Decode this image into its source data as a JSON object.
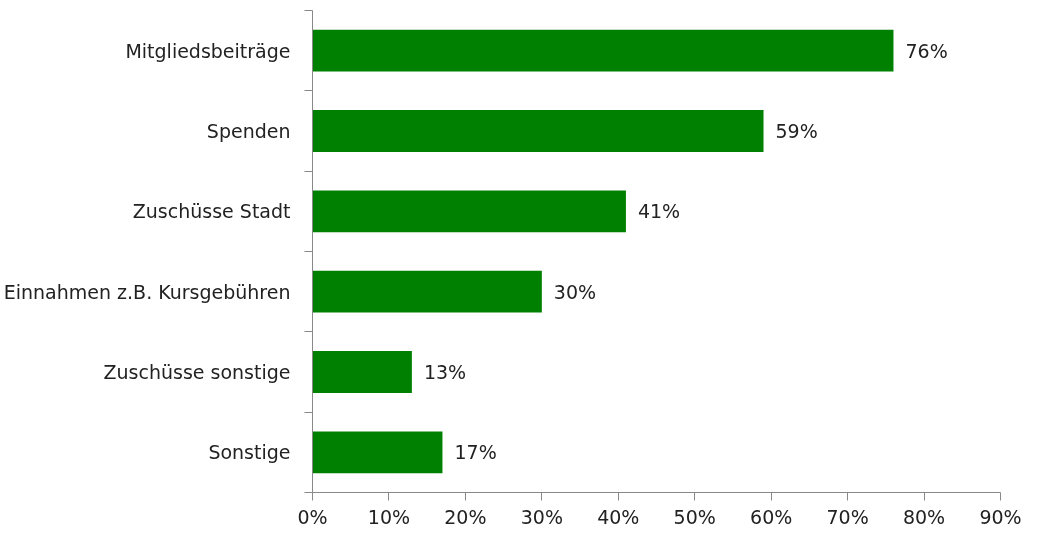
{
  "chart_data": {
    "type": "bar",
    "orientation": "horizontal",
    "categories": [
      "Mitgliedsbeiträge",
      "Spenden",
      "Zuschüsse Stadt",
      "Einnahmen z.B. Kursgebühren",
      "Zuschüsse sonstige",
      "Sonstige"
    ],
    "values": [
      76,
      59,
      41,
      30,
      13,
      17
    ],
    "value_labels": [
      "76%",
      "59%",
      "41%",
      "30%",
      "13%",
      "17%"
    ],
    "color": "#008000",
    "xlim": [
      0,
      90
    ],
    "xticks": [
      {
        "value": 0,
        "label": "0%"
      },
      {
        "value": 10,
        "label": "10%"
      },
      {
        "value": 20,
        "label": "20%"
      },
      {
        "value": 30,
        "label": "30%"
      },
      {
        "value": 40,
        "label": "40%"
      },
      {
        "value": 50,
        "label": "50%"
      },
      {
        "value": 60,
        "label": "60%"
      },
      {
        "value": 70,
        "label": "70%"
      },
      {
        "value": 80,
        "label": "80%"
      },
      {
        "value": 90,
        "label": "90%"
      }
    ],
    "grid": false
  }
}
